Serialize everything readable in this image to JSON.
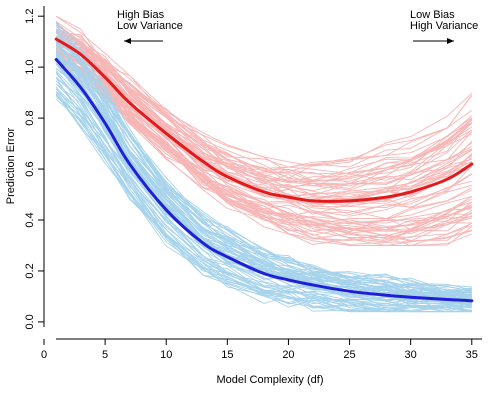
{
  "chart_data": {
    "type": "line",
    "title": "",
    "xlabel": "Model Complexity (df)",
    "ylabel": "Prediction Error",
    "xlim": [
      0,
      36
    ],
    "ylim": [
      -0.02,
      1.24
    ],
    "x_ticks": [
      0,
      5,
      10,
      15,
      20,
      25,
      30,
      35
    ],
    "y_ticks": [
      0.0,
      0.2,
      0.4,
      0.6,
      0.8,
      1.0,
      1.2
    ],
    "grid": false,
    "legend": "none",
    "colors": {
      "test_mean": "#e31a1c",
      "train_mean": "#1f1fd6",
      "test_realization": "#f7b6b6",
      "train_realization": "#a6d3ec"
    },
    "x": [
      1,
      3,
      5,
      7,
      10,
      13,
      15,
      18,
      20,
      22,
      25,
      28,
      30,
      33,
      35
    ],
    "series": [
      {
        "role": "test_mean",
        "values": [
          1.11,
          1.05,
          0.96,
          0.86,
          0.74,
          0.63,
          0.57,
          0.51,
          0.49,
          0.475,
          0.475,
          0.49,
          0.51,
          0.56,
          0.62
        ]
      },
      {
        "role": "train_mean",
        "values": [
          1.03,
          0.92,
          0.78,
          0.62,
          0.44,
          0.31,
          0.255,
          0.19,
          0.165,
          0.145,
          0.12,
          0.105,
          0.097,
          0.088,
          0.083
        ]
      }
    ],
    "annotations": [
      {
        "lines": [
          "High Bias",
          "Low Variance"
        ],
        "arrow": "left"
      },
      {
        "lines": [
          "Low Bias",
          "High Variance"
        ],
        "arrow": "right"
      }
    ]
  }
}
